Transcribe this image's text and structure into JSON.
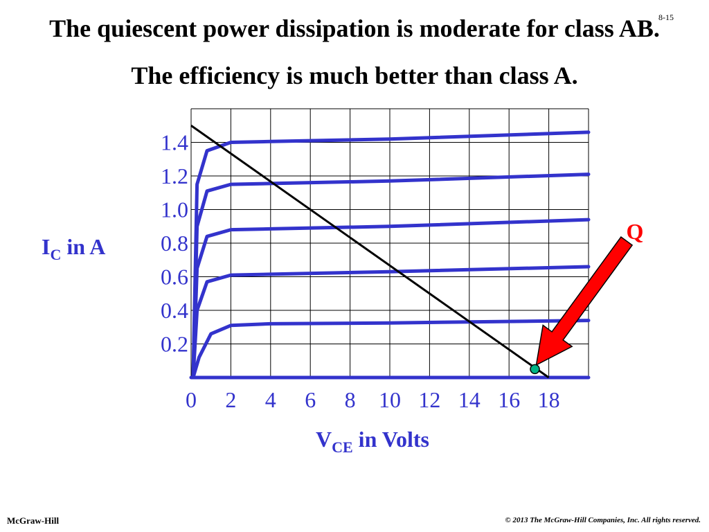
{
  "slide": {
    "title_line1": "The quiescent power dissipation is moderate for class AB.",
    "title_line2": "The efficiency is much better than class A.",
    "slide_number": "8-15",
    "footer_left": "McGraw-Hill",
    "footer_right": "© 2013 The McGraw-Hill Companies, Inc. All rights reserved."
  },
  "chart_data": {
    "type": "line",
    "x_tick_labels": [
      "0",
      "2",
      "4",
      "6",
      "8",
      "10",
      "12",
      "14",
      "16",
      "18"
    ],
    "x_tick_values": [
      0,
      2,
      4,
      6,
      8,
      10,
      12,
      14,
      16,
      18
    ],
    "y_tick_labels": [
      "0.2",
      "0.4",
      "0.6",
      "0.8",
      "1.0",
      "1.2",
      "1.4"
    ],
    "y_tick_values": [
      0.2,
      0.4,
      0.6,
      0.8,
      1.0,
      1.2,
      1.4
    ],
    "xlim": [
      0,
      20
    ],
    "ylim": [
      0,
      1.6
    ],
    "xlabel": {
      "main": "V",
      "sub": "CE",
      "rest": " in Volts"
    },
    "ylabel": {
      "main": "I",
      "sub": "C",
      "rest": " in A"
    },
    "grid": true,
    "characteristic_curves": [
      {
        "points": [
          [
            0.1,
            0.0
          ],
          [
            0.4,
            0.12
          ],
          [
            1.0,
            0.26
          ],
          [
            2.0,
            0.31
          ],
          [
            4.0,
            0.32
          ],
          [
            10.0,
            0.325
          ],
          [
            20.0,
            0.34
          ]
        ]
      },
      {
        "points": [
          [
            0.1,
            0.0
          ],
          [
            0.3,
            0.4
          ],
          [
            0.8,
            0.57
          ],
          [
            2.0,
            0.61
          ],
          [
            4.0,
            0.615
          ],
          [
            10.0,
            0.63
          ],
          [
            20.0,
            0.66
          ]
        ]
      },
      {
        "points": [
          [
            0.1,
            0.0
          ],
          [
            0.3,
            0.65
          ],
          [
            0.8,
            0.84
          ],
          [
            2.0,
            0.88
          ],
          [
            4.0,
            0.885
          ],
          [
            10.0,
            0.9
          ],
          [
            20.0,
            0.94
          ]
        ]
      },
      {
        "points": [
          [
            0.1,
            0.0
          ],
          [
            0.3,
            0.9
          ],
          [
            0.8,
            1.11
          ],
          [
            2.0,
            1.15
          ],
          [
            4.0,
            1.155
          ],
          [
            10.0,
            1.17
          ],
          [
            20.0,
            1.21
          ]
        ]
      },
      {
        "points": [
          [
            0.1,
            0.0
          ],
          [
            0.3,
            1.15
          ],
          [
            0.8,
            1.35
          ],
          [
            2.0,
            1.4
          ],
          [
            4.0,
            1.405
          ],
          [
            10.0,
            1.42
          ],
          [
            20.0,
            1.46
          ]
        ]
      },
      {
        "points": [
          [
            0.0,
            0.0
          ],
          [
            20.0,
            0.0
          ]
        ]
      }
    ],
    "load_line": {
      "points": [
        [
          0.0,
          1.5
        ],
        [
          18.0,
          0.0
        ]
      ]
    },
    "q_point": {
      "label": "Q",
      "x": 17.3,
      "y": 0.05
    },
    "colors": {
      "curves": "#3333cc",
      "load_line": "#000000",
      "q_point": "#00b386",
      "arrow": "#ff0000",
      "tick_text": "#3333cc",
      "q_label": "#ff0000",
      "grid": "#000000"
    }
  }
}
